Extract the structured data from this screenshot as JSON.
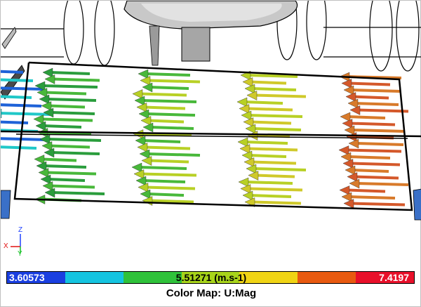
{
  "legend": {
    "min_label": "3.60573",
    "mid_label": "5.51271 (m.s-1)",
    "max_label": "7.4197",
    "title": "Color Map: U:Mag",
    "colors": [
      "#1a3fe0",
      "#14c4e0",
      "#2fc23a",
      "#a8d41a",
      "#f0d414",
      "#e85a10",
      "#e8102a"
    ]
  },
  "axes": {
    "z": "Z",
    "x": "X",
    "y": "Y"
  },
  "scene": {
    "arrow_colors": [
      "#1e62d8",
      "#20c8c8",
      "#2a9d3c",
      "#48b83a",
      "#b8d025",
      "#cfc92a",
      "#d87a2a",
      "#d4582a"
    ],
    "hull_color": "#d2d2d2",
    "box_color": "#000000",
    "field_quantity": "U:Mag"
  }
}
